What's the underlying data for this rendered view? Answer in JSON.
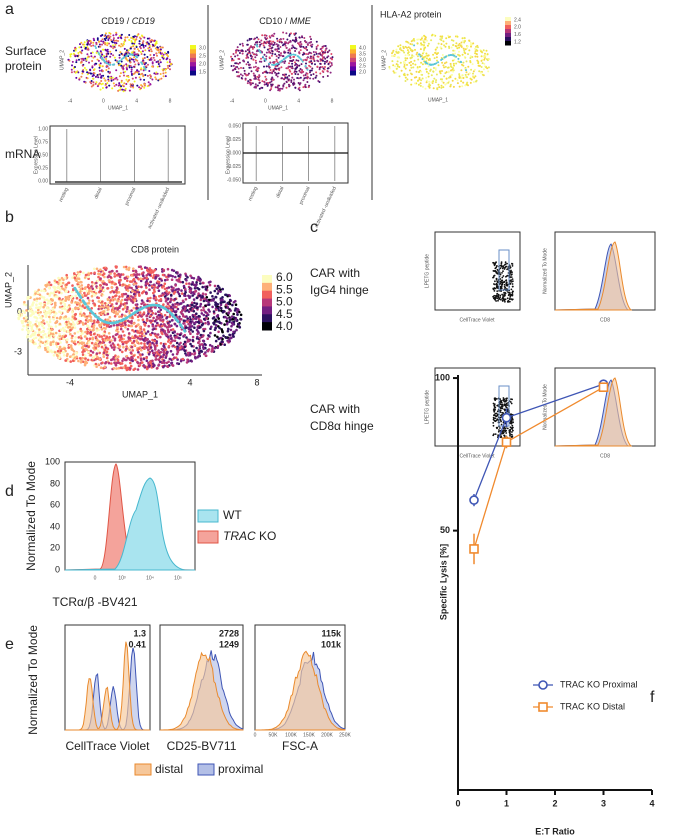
{
  "panel_a": {
    "label": "a",
    "row_labels": [
      [
        "Surface",
        "protein"
      ],
      [
        "mRNA"
      ]
    ],
    "plots": [
      {
        "title": "CD19 /",
        "title_gene": "CD19",
        "colorbar_ticks": [
          "3.0",
          "2.5",
          "2.0",
          "1.5"
        ]
      },
      {
        "title": "CD10 /",
        "title_gene": "MME",
        "colorbar_ticks": [
          "4.0",
          "3.5",
          "3.0",
          "2.5",
          "2.0"
        ]
      },
      {
        "title": "HLA-A2 protein",
        "colorbar_ticks": [
          "2.4",
          "2.0",
          "1.6",
          "1.2"
        ]
      }
    ],
    "umap_x": "UMAP_1",
    "umap_y": "UMAP_2",
    "umap_xticks": [
      "-4",
      "0",
      "4",
      "8"
    ],
    "violin_categories": [
      "resting",
      "distal",
      "proximal",
      "activated -undivided"
    ],
    "violin_ylabel": "Expression Level",
    "violin1_yticks": [
      "1.00",
      "0.75",
      "0.50",
      "0.25",
      "0.00"
    ],
    "violin2_yticks": [
      "0.050",
      "0.025",
      "0.000",
      "-0.025",
      "-0.050"
    ]
  },
  "panel_b": {
    "label": "b",
    "title": "CD8 protein",
    "x_label": "UMAP_1",
    "y_label": "UMAP_2",
    "xticks": [
      "-4",
      "4",
      "8"
    ],
    "yticks": [
      "0",
      "-3"
    ],
    "colorbar_ticks": [
      "6.0",
      "5.5",
      "5.0",
      "4.5",
      "4.0"
    ]
  },
  "panel_c": {
    "label": "c",
    "rows": [
      [
        "CAR with",
        "IgG4 hinge"
      ],
      [
        "CAR with",
        "CD8α hinge"
      ]
    ],
    "dot_x_label": "CellTrace Violet",
    "dot_y_label": "LPETG peptide",
    "hist_x_label": "CD8",
    "hist_y_label": "Normalized To Mode"
  },
  "panel_d": {
    "label": "d",
    "y_label": "Normalized To Mode",
    "x_label": "TCRα/β -BV421",
    "yticks": [
      "100",
      "80",
      "60",
      "40",
      "20",
      "0"
    ],
    "xticks": [
      "0",
      "10³",
      "10⁴",
      "10⁵"
    ],
    "legend": [
      "WT",
      "TRAC",
      " KO"
    ]
  },
  "panel_e": {
    "label": "e",
    "y_label": "Normalized To Mode",
    "plots": [
      {
        "x_label": "CellTrace Violet",
        "stats": [
          "1.3",
          "0.41"
        ]
      },
      {
        "x_label": "CD25-BV711",
        "stats": [
          "2728",
          "1249"
        ]
      },
      {
        "x_label": "FSC-A",
        "stats": [
          "115k",
          "101k"
        ],
        "xticks": [
          "0",
          "50K",
          "100K",
          "150K",
          "200K",
          "250K"
        ]
      }
    ],
    "legend": [
      "distal",
      "proximal"
    ]
  },
  "panel_f_label": "f",
  "chart_data": {
    "type": "line",
    "x_label": "E:T Ratio",
    "y_label": "Specific Lysis [%]",
    "x": [
      0.33,
      1,
      3
    ],
    "series": [
      {
        "name": "TRAC KO Proximal",
        "color": "#3f56b5",
        "marker": "circle",
        "values": [
          60,
          87,
          98
        ],
        "errors": [
          2,
          3,
          1
        ]
      },
      {
        "name": "TRAC KO Distal",
        "color": "#f08a2e",
        "marker": "square",
        "values": [
          44,
          79,
          97
        ],
        "errors": [
          5,
          2,
          1
        ]
      }
    ],
    "xlim": [
      0,
      4
    ],
    "xticks": [
      0,
      1,
      2,
      3,
      4
    ],
    "ylim": [
      -35,
      101
    ],
    "yticks": [
      50,
      100
    ]
  }
}
